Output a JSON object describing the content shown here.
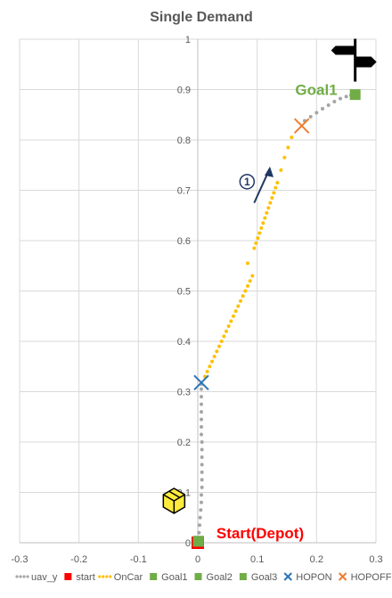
{
  "chart_data": {
    "type": "scatter",
    "title": "Single Demand",
    "xlim": [
      -0.3,
      0.3
    ],
    "ylim": [
      0,
      1
    ],
    "x_ticks": [
      -0.3,
      -0.2,
      -0.1,
      0,
      0.1,
      0.2,
      0.3
    ],
    "y_ticks": [
      0,
      0.1,
      0.2,
      0.3,
      0.4,
      0.5,
      0.6,
      0.7,
      0.8,
      0.9,
      1
    ],
    "x_tick_labels": [
      "-0.3",
      "-0.2",
      "-0.1",
      "0",
      "0.1",
      "0.2",
      "0.3"
    ],
    "y_tick_labels": [
      "0",
      "0.1",
      "0.2",
      "0.3",
      "0.4",
      "0.5",
      "0.6",
      "0.7",
      "0.8",
      "0.9",
      "1"
    ],
    "grid": true,
    "legend_position": "bottom",
    "series": [
      {
        "name": "uav_y",
        "marker": "dot",
        "color": "#a5a5a5",
        "points": [
          [
            0.001,
            0.005
          ],
          [
            0.002,
            0.02
          ],
          [
            0.003,
            0.035
          ],
          [
            0.004,
            0.05
          ],
          [
            0.005,
            0.065
          ],
          [
            0.006,
            0.08
          ],
          [
            0.006,
            0.095
          ],
          [
            0.007,
            0.11
          ],
          [
            0.007,
            0.125
          ],
          [
            0.007,
            0.14
          ],
          [
            0.007,
            0.155
          ],
          [
            0.007,
            0.17
          ],
          [
            0.007,
            0.185
          ],
          [
            0.007,
            0.2
          ],
          [
            0.006,
            0.215
          ],
          [
            0.006,
            0.23
          ],
          [
            0.006,
            0.245
          ],
          [
            0.006,
            0.26
          ],
          [
            0.006,
            0.275
          ],
          [
            0.006,
            0.29
          ],
          [
            0.006,
            0.305
          ],
          [
            0.006,
            0.315
          ],
          [
            0.18,
            0.838
          ],
          [
            0.19,
            0.846
          ],
          [
            0.2,
            0.854
          ],
          [
            0.21,
            0.862
          ],
          [
            0.22,
            0.869
          ],
          [
            0.23,
            0.876
          ],
          [
            0.24,
            0.882
          ],
          [
            0.25,
            0.886
          ],
          [
            0.258,
            0.889
          ]
        ]
      },
      {
        "name": "start",
        "marker": "square",
        "color": "#ff0000",
        "points": [
          [
            0,
            0
          ]
        ]
      },
      {
        "name": "OnCar",
        "marker": "dot",
        "color": "#ffc000",
        "points": [
          [
            0.012,
            0.33
          ],
          [
            0.016,
            0.34
          ],
          [
            0.02,
            0.35
          ],
          [
            0.024,
            0.36
          ],
          [
            0.028,
            0.37
          ],
          [
            0.032,
            0.38
          ],
          [
            0.036,
            0.39
          ],
          [
            0.04,
            0.4
          ],
          [
            0.044,
            0.41
          ],
          [
            0.048,
            0.42
          ],
          [
            0.052,
            0.43
          ],
          [
            0.056,
            0.44
          ],
          [
            0.06,
            0.45
          ],
          [
            0.064,
            0.46
          ],
          [
            0.068,
            0.47
          ],
          [
            0.072,
            0.48
          ],
          [
            0.076,
            0.49
          ],
          [
            0.08,
            0.5
          ],
          [
            0.084,
            0.51
          ],
          [
            0.088,
            0.52
          ],
          [
            0.092,
            0.53
          ],
          [
            0.084,
            0.555
          ],
          [
            0.095,
            0.585
          ],
          [
            0.098,
            0.595
          ],
          [
            0.101,
            0.605
          ],
          [
            0.104,
            0.615
          ],
          [
            0.107,
            0.625
          ],
          [
            0.11,
            0.635
          ],
          [
            0.113,
            0.645
          ],
          [
            0.116,
            0.655
          ],
          [
            0.119,
            0.665
          ],
          [
            0.122,
            0.675
          ],
          [
            0.125,
            0.685
          ],
          [
            0.128,
            0.695
          ],
          [
            0.131,
            0.705
          ],
          [
            0.134,
            0.715
          ],
          [
            0.14,
            0.74
          ],
          [
            0.146,
            0.765
          ],
          [
            0.152,
            0.785
          ],
          [
            0.158,
            0.805
          ]
        ]
      },
      {
        "name": "Goal1",
        "marker": "square",
        "color": "#70ad47",
        "points": [
          [
            0.265,
            0.89
          ]
        ]
      },
      {
        "name": "Goal2",
        "marker": "square",
        "color": "#70ad47",
        "points": [
          [
            0.001,
            0.003
          ]
        ]
      },
      {
        "name": "Goal3",
        "marker": "square",
        "color": "#70ad47",
        "points": [
          [
            0.001,
            0.003
          ]
        ]
      },
      {
        "name": "HOPON",
        "marker": "x",
        "color": "#2e75b6",
        "points": [
          [
            0.006,
            0.318
          ]
        ]
      },
      {
        "name": "HOPOFF",
        "marker": "x",
        "color": "#ed7d31",
        "points": [
          [
            0.175,
            0.828
          ]
        ]
      }
    ],
    "annotations": [
      {
        "text": "Goal1",
        "x": 0.235,
        "y": 0.9
      },
      {
        "text": "Start(Depot)",
        "x": 0.105,
        "y": 0.005
      },
      {
        "text": "①",
        "x": 0.083,
        "y": 0.71
      }
    ],
    "pictograms": [
      {
        "icon": "signpost-icon",
        "x": 0.265,
        "y": 0.93
      },
      {
        "icon": "package-icon",
        "x": -0.04,
        "y": 0.085
      }
    ]
  }
}
